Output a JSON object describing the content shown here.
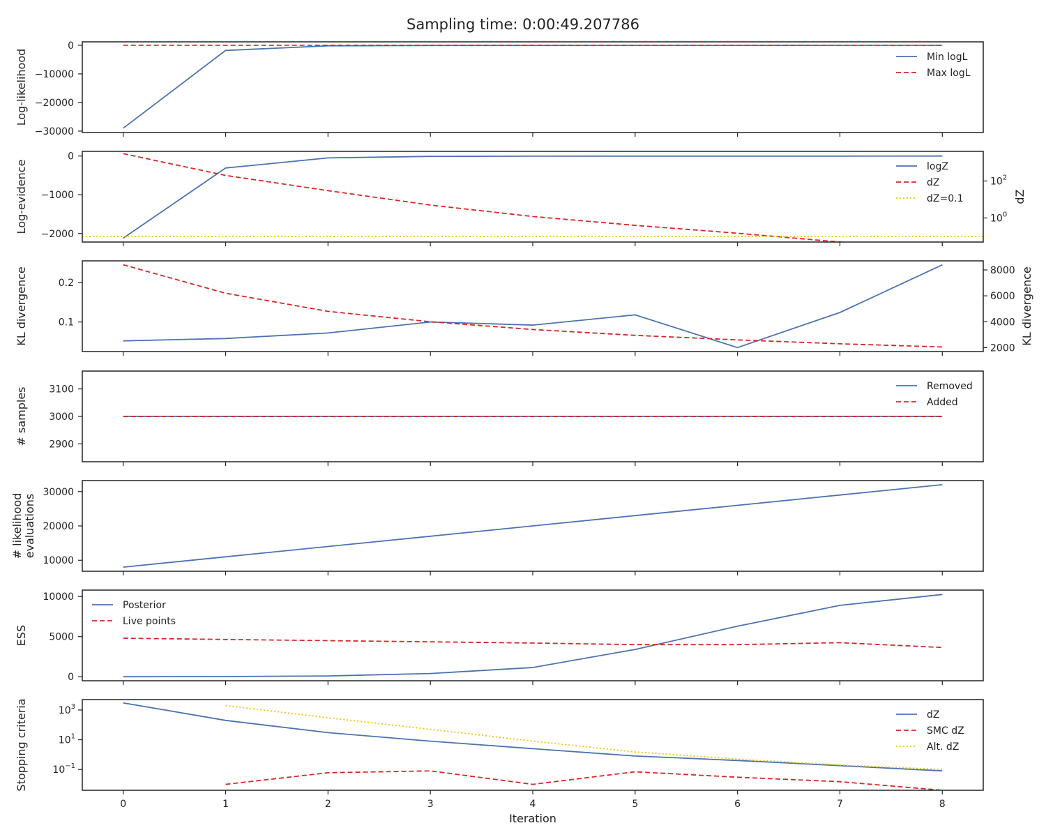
{
  "figure": {
    "title": "Sampling time: 0:00:49.207786",
    "xlabel": "Iteration",
    "xticks": [
      "0",
      "1",
      "2",
      "3",
      "4",
      "5",
      "6",
      "7",
      "8"
    ]
  },
  "colors": {
    "blue": "#4c72b0",
    "red": "#d62728",
    "gold": "#f2c200"
  },
  "chart_data": [
    {
      "id": "loglik",
      "type": "line",
      "ylabel": "Log-likelihood",
      "xlim": [
        -0.4,
        8.4
      ],
      "ylim": [
        -30500,
        1200
      ],
      "yticks": [
        0,
        -10000,
        -20000,
        -30000
      ],
      "ytick_labels": [
        "0",
        "−10000",
        "−20000",
        "−30000"
      ],
      "legend": {
        "position": "top-right",
        "entries": [
          "Min logL",
          "Max logL"
        ]
      },
      "series": [
        {
          "name": "Min logL",
          "style": "solid",
          "color": "blue",
          "x": [
            0,
            1,
            2,
            3,
            4,
            5,
            6,
            7,
            8
          ],
          "y": [
            -29000,
            -1800,
            -200,
            -80,
            -40,
            -20,
            -10,
            -5,
            -3
          ]
        },
        {
          "name": "Max logL",
          "style": "dashed",
          "color": "red",
          "x": [
            0,
            1,
            2,
            3,
            4,
            5,
            6,
            7,
            8
          ],
          "y": [
            0,
            0,
            0,
            0,
            0,
            0,
            0,
            0,
            0
          ]
        }
      ]
    },
    {
      "id": "logz",
      "type": "line",
      "ylabel": "Log-evidence",
      "ylabel_right": "dZ",
      "xlim": [
        -0.4,
        8.4
      ],
      "ylim": [
        -2220,
        120
      ],
      "yticks": [
        0,
        -1000,
        -2000
      ],
      "ytick_labels": [
        "0",
        "−1000",
        "−2000"
      ],
      "ylim_right_log10": [
        -1.3,
        3.6
      ],
      "yticks_right": [
        {
          "base": "10",
          "exp": "2",
          "log10": 2
        },
        {
          "base": "10",
          "exp": "0",
          "log10": 0
        }
      ],
      "legend": {
        "position": "top-right",
        "entries": [
          "logZ",
          "dZ",
          "dZ=0.1"
        ]
      },
      "series": [
        {
          "name": "logZ",
          "style": "solid",
          "color": "blue",
          "axis": "left",
          "x": [
            0,
            1,
            2,
            3,
            4,
            5,
            6,
            7,
            8
          ],
          "y": [
            -2120,
            -310,
            -50,
            -10,
            -5,
            -3,
            -2,
            -2,
            -1
          ]
        },
        {
          "name": "dZ",
          "style": "dashed",
          "color": "red",
          "axis": "right",
          "scale": "log",
          "x": [
            0,
            1,
            2,
            3,
            4,
            5,
            6,
            7,
            8
          ],
          "y": [
            3000,
            200,
            30,
            5,
            1.2,
            0.4,
            0.15,
            0.05,
            0.02
          ]
        },
        {
          "name": "dZ=0.1",
          "style": "dotted",
          "color": "gold",
          "axis": "right",
          "scale": "log",
          "x": [
            -0.4,
            8.4
          ],
          "y": [
            0.1,
            0.1
          ]
        }
      ]
    },
    {
      "id": "kl",
      "type": "line",
      "ylabel": "KL divergence",
      "ylabel_right": "KL divergence",
      "xlim": [
        -0.4,
        8.4
      ],
      "ylim": [
        0.025,
        0.255
      ],
      "yticks": [
        0.1,
        0.2
      ],
      "ytick_labels": [
        "0.1",
        "0.2"
      ],
      "ylim_right": [
        1700,
        8700
      ],
      "yticks_right": [
        2000,
        4000,
        6000,
        8000
      ],
      "ytick_labels_right": [
        "2000",
        "4000",
        "6000",
        "8000"
      ],
      "series": [
        {
          "name": "",
          "style": "solid",
          "color": "blue",
          "axis": "left",
          "x": [
            0,
            1,
            2,
            3,
            4,
            5,
            6,
            7,
            8
          ],
          "y": [
            0.052,
            0.058,
            0.072,
            0.1,
            0.092,
            0.118,
            0.035,
            0.124,
            0.245
          ]
        },
        {
          "name": "",
          "style": "dashed",
          "color": "red",
          "axis": "right",
          "x": [
            0,
            1,
            2,
            3,
            4,
            5,
            6,
            7,
            8
          ],
          "y": [
            8400,
            6200,
            4800,
            4000,
            3400,
            2950,
            2600,
            2300,
            2050
          ]
        }
      ]
    },
    {
      "id": "samples",
      "type": "line",
      "ylabel": "# samples",
      "xlim": [
        -0.4,
        8.4
      ],
      "ylim": [
        2835,
        3165
      ],
      "yticks": [
        2900,
        3000,
        3100
      ],
      "ytick_labels": [
        "2900",
        "3000",
        "3100"
      ],
      "legend": {
        "position": "top-right",
        "entries": [
          "Removed",
          "Added"
        ]
      },
      "series": [
        {
          "name": "Removed",
          "style": "solid",
          "color": "blue",
          "x": [
            0,
            1,
            2,
            3,
            4,
            5,
            6,
            7,
            8
          ],
          "y": [
            3000,
            3000,
            3000,
            3000,
            3000,
            3000,
            3000,
            3000,
            3000
          ]
        },
        {
          "name": "Added",
          "style": "dashed",
          "color": "red",
          "x": [
            0,
            1,
            2,
            3,
            4,
            5,
            6,
            7,
            8
          ],
          "y": [
            3000,
            3000,
            3000,
            3000,
            3000,
            3000,
            3000,
            3000,
            3000
          ]
        }
      ]
    },
    {
      "id": "evals",
      "type": "line",
      "ylabel": [
        "# likelihood",
        "evaluations"
      ],
      "xlim": [
        -0.4,
        8.4
      ],
      "ylim": [
        6800,
        33200
      ],
      "yticks": [
        10000,
        20000,
        30000
      ],
      "ytick_labels": [
        "10000",
        "20000",
        "30000"
      ],
      "series": [
        {
          "name": "",
          "style": "solid",
          "color": "blue",
          "x": [
            0,
            1,
            2,
            3,
            4,
            5,
            6,
            7,
            8
          ],
          "y": [
            8000,
            11000,
            14000,
            17000,
            20000,
            23000,
            26000,
            29000,
            32000
          ]
        }
      ]
    },
    {
      "id": "ess",
      "type": "line",
      "ylabel": "ESS",
      "xlim": [
        -0.4,
        8.4
      ],
      "ylim": [
        -500,
        10800
      ],
      "yticks": [
        0,
        5000,
        10000
      ],
      "ytick_labels": [
        "0",
        "5000",
        "10000"
      ],
      "legend": {
        "position": "top-left",
        "entries": [
          "Posterior",
          "Live points"
        ]
      },
      "series": [
        {
          "name": "Posterior",
          "style": "solid",
          "color": "blue",
          "x": [
            0,
            1,
            2,
            3,
            4,
            5,
            6,
            7,
            8
          ],
          "y": [
            0,
            20,
            100,
            400,
            1150,
            3400,
            6300,
            8900,
            10250
          ]
        },
        {
          "name": "Live points",
          "style": "dashed",
          "color": "red",
          "x": [
            0,
            1,
            2,
            3,
            4,
            5,
            6,
            7,
            8
          ],
          "y": [
            4800,
            4650,
            4500,
            4350,
            4200,
            4000,
            4000,
            4250,
            3650
          ]
        }
      ]
    },
    {
      "id": "stop",
      "type": "line",
      "ylabel": "Stopping criteria",
      "yscale": "log",
      "xlim": [
        -0.4,
        8.4
      ],
      "ylim_log10": [
        -2.4,
        3.7
      ],
      "yticks": [
        {
          "base": "10",
          "exp": "3",
          "log10": 3
        },
        {
          "base": "10",
          "exp": "1",
          "log10": 1
        },
        {
          "base": "10",
          "exp": "−1",
          "log10": -1
        }
      ],
      "legend": {
        "position": "top-right",
        "entries": [
          "dZ",
          "SMC dZ",
          "Alt. dZ"
        ]
      },
      "series": [
        {
          "name": "dZ",
          "style": "solid",
          "color": "blue",
          "x": [
            0,
            1,
            2,
            3,
            4,
            5,
            6,
            7,
            8
          ],
          "y": [
            3000,
            200,
            30,
            8,
            2.5,
            0.8,
            0.4,
            0.18,
            0.08
          ]
        },
        {
          "name": "SMC dZ",
          "style": "dashed",
          "color": "red",
          "x": [
            1,
            2,
            3,
            4,
            5,
            6,
            7,
            8
          ],
          "y": [
            0.01,
            0.06,
            0.08,
            0.01,
            0.07,
            0.03,
            0.015,
            0.004
          ]
        },
        {
          "name": "Alt. dZ",
          "style": "dotted",
          "color": "gold",
          "x": [
            1,
            2,
            3,
            4,
            5,
            6,
            7,
            8
          ],
          "y": [
            2000,
            300,
            50,
            8,
            1.5,
            0.5,
            0.2,
            0.1
          ]
        }
      ]
    }
  ]
}
